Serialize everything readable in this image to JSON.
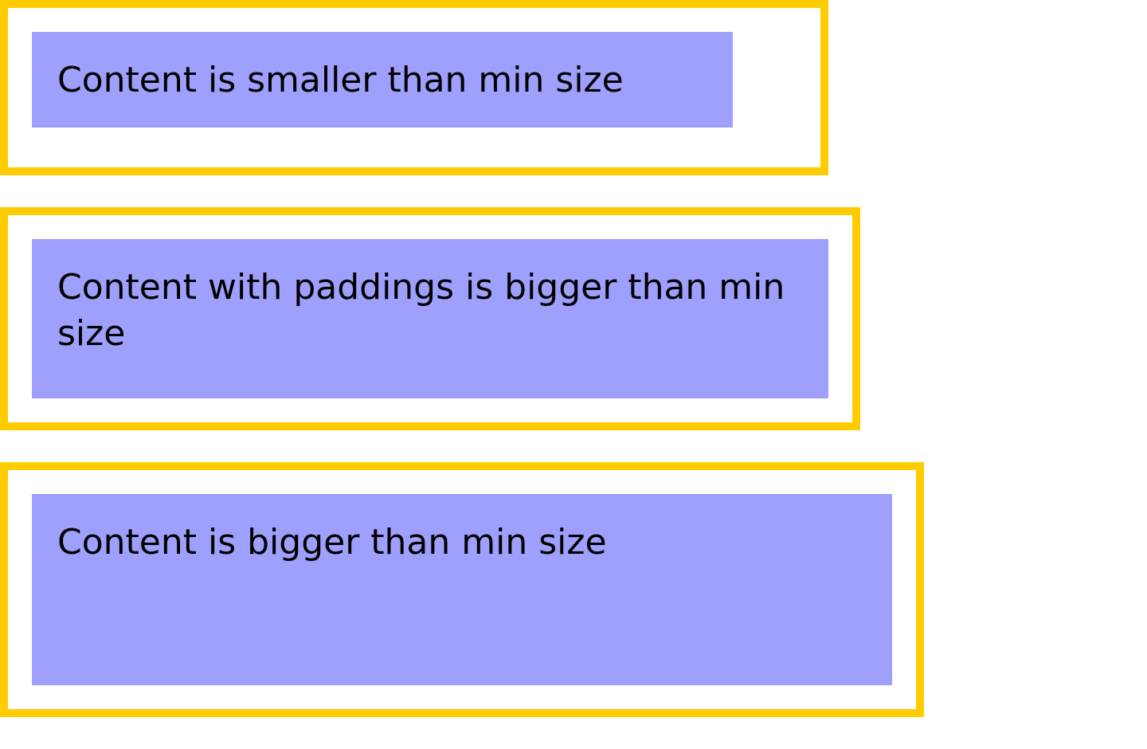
{
  "blocks": [
    {
      "text": "Content is smaller than min size"
    },
    {
      "text": "Content with paddings is bigger than min size"
    },
    {
      "text": "Content is bigger than min size"
    }
  ],
  "colors": {
    "frame_border": "#ffcc00",
    "content_fill": "#9fa0fd",
    "text": "#000000",
    "background": "#ffffff"
  }
}
